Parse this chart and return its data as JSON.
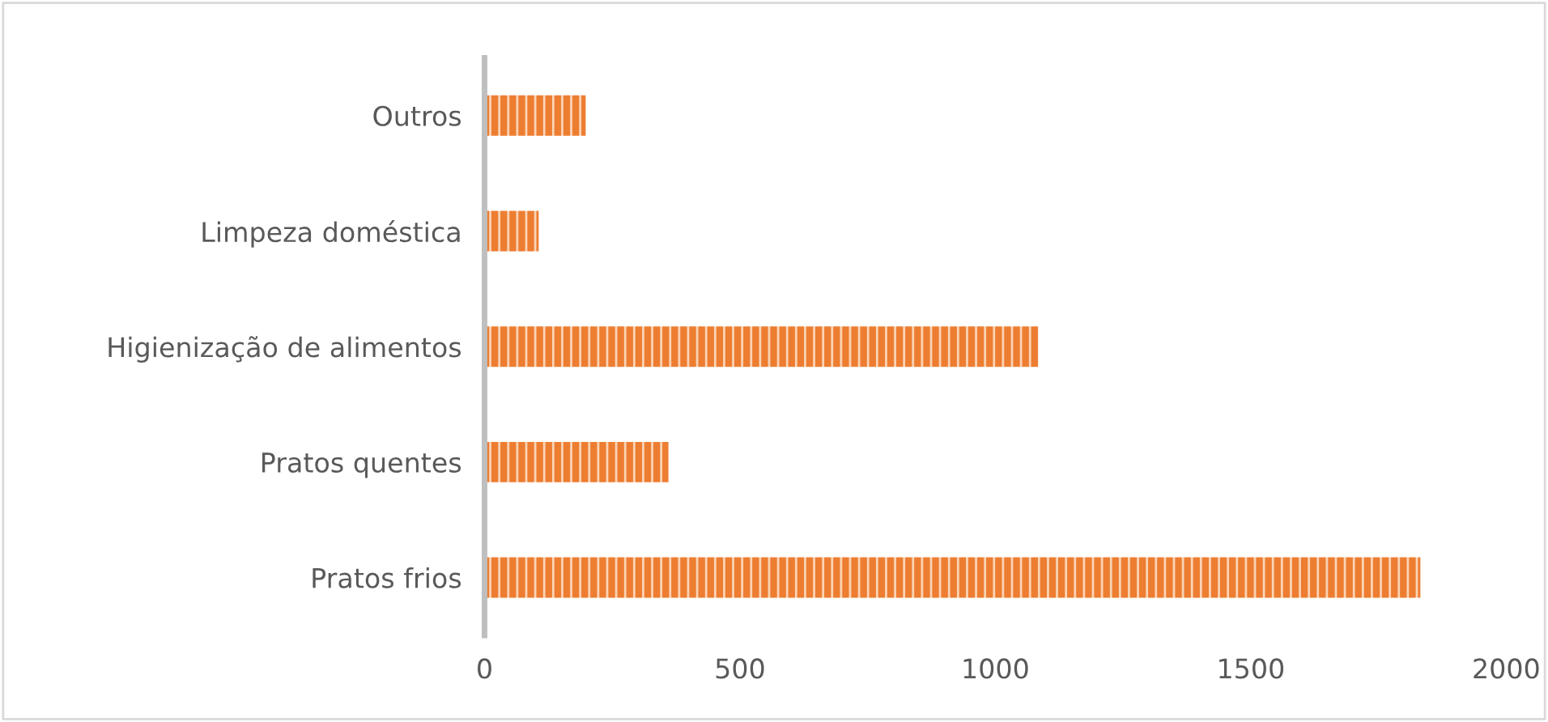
{
  "chart_data": {
    "type": "bar",
    "orientation": "horizontal",
    "categories": [
      "Outros",
      "Limpeza doméstica",
      "Higienização de alimentos",
      "Pratos quentes",
      "Pratos frios"
    ],
    "values": [
      198,
      106,
      1084,
      360,
      1832
    ],
    "color": "#ed7d31",
    "xlim": [
      0,
      2000
    ],
    "xticks": [
      0,
      500,
      1000,
      1500,
      2000
    ],
    "grid": false,
    "legend": false
  }
}
